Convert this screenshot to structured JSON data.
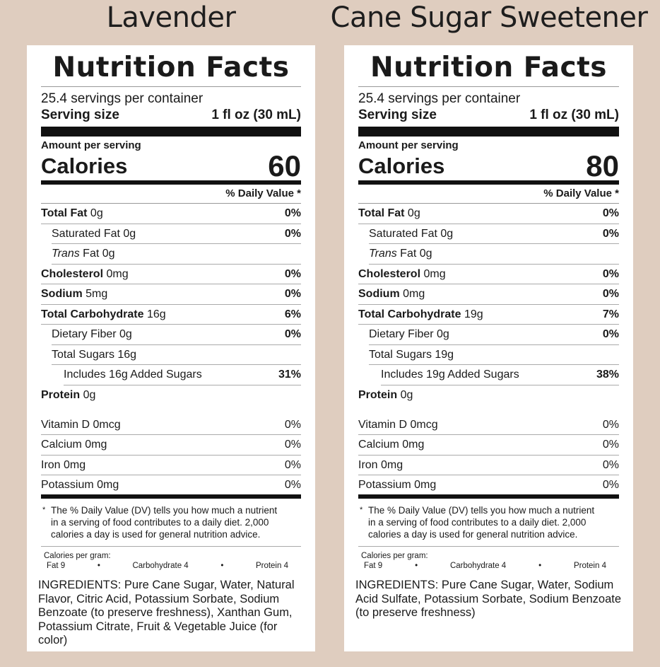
{
  "products": [
    {
      "title": "Lavender",
      "panel_title": "Nutrition Facts",
      "servings": "25.4 servings per container",
      "serving_size_label": "Serving size",
      "serving_size_value": "1 fl oz (30 mL)",
      "amount_label": "Amount per serving",
      "calories_label": "Calories",
      "calories_value": "60",
      "dv_header": "% Daily Value *",
      "total_fat_label": "Total Fat",
      "total_fat_amt": " 0g",
      "total_fat_pct": "0%",
      "sat_fat": "Saturated Fat 0g",
      "sat_fat_pct": "0%",
      "trans_label": "Trans",
      "trans_rest": " Fat 0g",
      "chol_label": "Cholesterol",
      "chol_amt": " 0mg",
      "chol_pct": "0%",
      "sodium_label": "Sodium",
      "sodium_amt": " 5mg",
      "sodium_pct": "0%",
      "carb_label": "Total Carbohydrate",
      "carb_amt": " 16g",
      "carb_pct": "6%",
      "fiber": "Dietary Fiber 0g",
      "fiber_pct": "0%",
      "sugars": "Total Sugars 16g",
      "added_sugars": "Includes 16g Added Sugars",
      "added_sugars_pct": "31%",
      "protein_label": "Protein",
      "protein_amt": " 0g",
      "vit_d": "Vitamin D 0mcg",
      "vit_d_pct": "0%",
      "calcium": "Calcium 0mg",
      "calcium_pct": "0%",
      "iron": "Iron 0mg",
      "iron_pct": "0%",
      "potassium": "Potassium 0mg",
      "potassium_pct": "0%",
      "footnote_star": "*",
      "footnote": "The % Daily Value (DV) tells you how much a nutrient in a serving of food contributes to a daily diet. 2,000 calories a day is used for general nutrition advice.",
      "cal_gram_title": "Calories per gram:",
      "cal_gram_fat": "Fat 9",
      "cal_gram_carb": "Carbohydrate 4",
      "cal_gram_protein": "Protein 4",
      "bullet": "•",
      "ingredients": "INGREDIENTS: Pure Cane Sugar, Water, Natural Flavor, Citric Acid, Potassium Sorbate, Sodium Benzoate (to preserve freshness), Xanthan Gum, Potassium Citrate, Fruit & Vegetable Juice (for color)"
    },
    {
      "title": "Cane Sugar Sweetener",
      "panel_title": "Nutrition Facts",
      "servings": "25.4 servings per container",
      "serving_size_label": "Serving size",
      "serving_size_value": "1 fl oz (30 mL)",
      "amount_label": "Amount per serving",
      "calories_label": "Calories",
      "calories_value": "80",
      "dv_header": "% Daily Value *",
      "total_fat_label": "Total Fat",
      "total_fat_amt": " 0g",
      "total_fat_pct": "0%",
      "sat_fat": "Saturated Fat 0g",
      "sat_fat_pct": "0%",
      "trans_label": "Trans",
      "trans_rest": " Fat 0g",
      "chol_label": "Cholesterol",
      "chol_amt": " 0mg",
      "chol_pct": "0%",
      "sodium_label": "Sodium",
      "sodium_amt": " 0mg",
      "sodium_pct": "0%",
      "carb_label": "Total Carbohydrate",
      "carb_amt": " 19g",
      "carb_pct": "7%",
      "fiber": "Dietary Fiber 0g",
      "fiber_pct": "0%",
      "sugars": "Total Sugars 19g",
      "added_sugars": "Includes 19g Added Sugars",
      "added_sugars_pct": "38%",
      "protein_label": "Protein",
      "protein_amt": " 0g",
      "vit_d": "Vitamin D 0mcg",
      "vit_d_pct": "0%",
      "calcium": "Calcium 0mg",
      "calcium_pct": "0%",
      "iron": "Iron 0mg",
      "iron_pct": "0%",
      "potassium": "Potassium 0mg",
      "potassium_pct": "0%",
      "footnote_star": "*",
      "footnote": "The % Daily Value (DV) tells you how much a nutrient in a serving of food contributes to a daily diet. 2,000 calories a day is used for general nutrition advice.",
      "cal_gram_title": "Calories per gram:",
      "cal_gram_fat": "Fat 9",
      "cal_gram_carb": "Carbohydrate 4",
      "cal_gram_protein": "Protein 4",
      "bullet": "•",
      "ingredients": "INGREDIENTS: Pure Cane Sugar, Water, Sodium Acid Sulfate, Potassium Sorbate, Sodium Benzoate (to preserve freshness)"
    }
  ]
}
